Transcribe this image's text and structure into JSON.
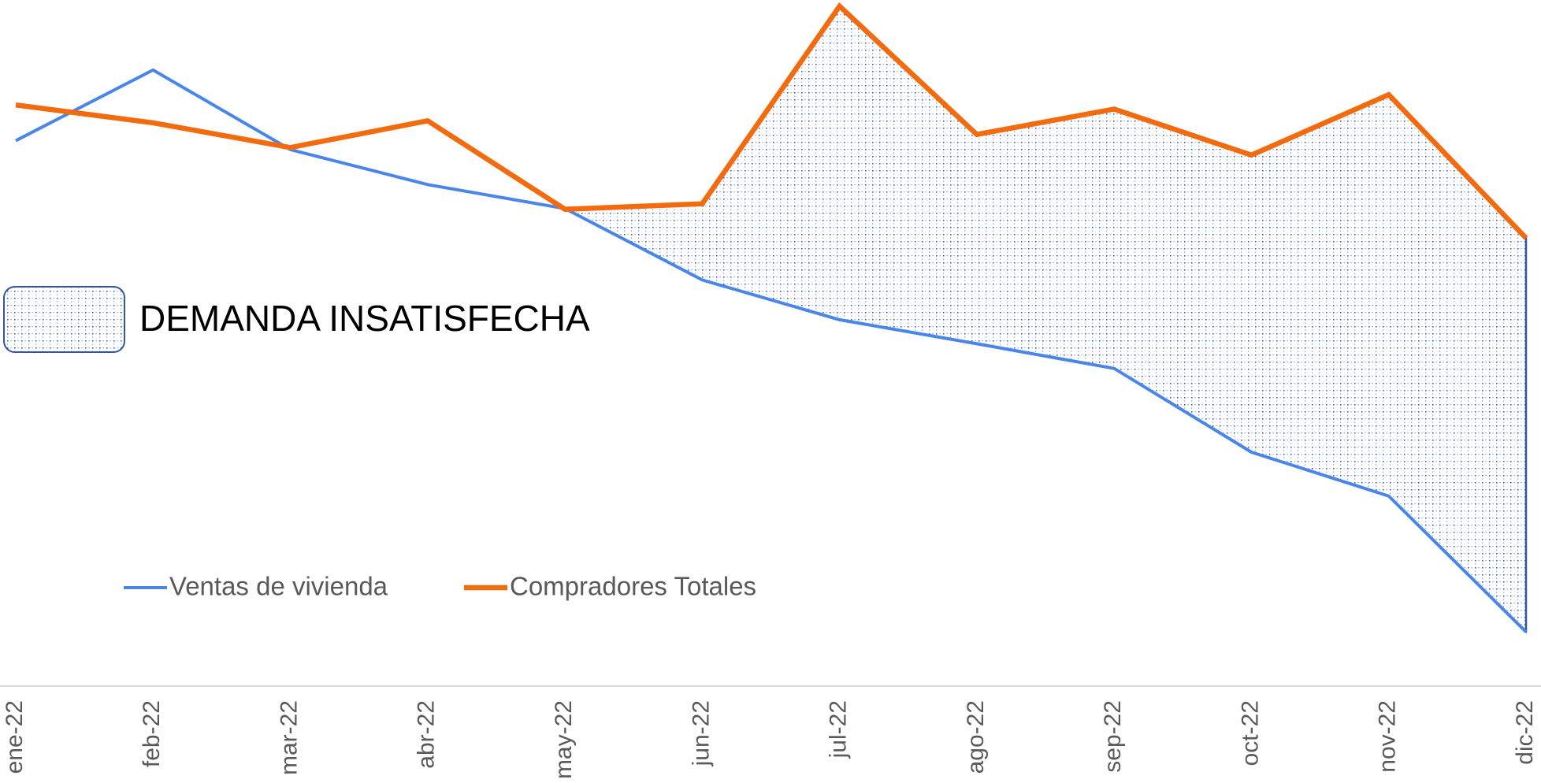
{
  "chart_data": {
    "type": "line",
    "categories": [
      "ene-22",
      "feb-22",
      "mar-22",
      "abr-22",
      "may-22",
      "jun-22",
      "jul-22",
      "ago-22",
      "sep-22",
      "oct-22",
      "nov-22",
      "dic-22"
    ],
    "series": [
      {
        "name": "Ventas de vivienda",
        "color": "#4a86e8",
        "values": [
          79.5,
          89.8,
          78.2,
          73.1,
          69.6,
          59.2,
          53.4,
          49.9,
          46.3,
          34.1,
          27.7,
          7.9
        ]
      },
      {
        "name": "Compradores Totales",
        "color": "#f26b0f",
        "values": [
          84.7,
          82.1,
          78.5,
          82.4,
          69.5,
          70.3,
          99.1,
          80.4,
          84.1,
          77.4,
          86.2,
          65.3
        ]
      }
    ],
    "ylim": [
      0,
      100
    ],
    "annotations": [
      "DEMANDA INSATISFECHA"
    ]
  }
}
